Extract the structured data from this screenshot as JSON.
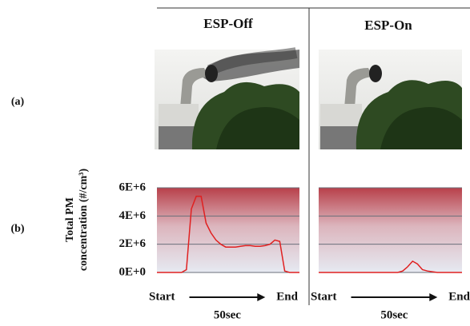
{
  "columns": [
    "ESP-Off",
    "ESP-On"
  ],
  "rows": [
    "(a)",
    "(b)"
  ],
  "chart_data": [
    {
      "type": "line",
      "color": "#e02020",
      "ylabel": [
        "Total PM",
        "concentration (#/cm³)"
      ],
      "x_start": "Start",
      "x_end": "End",
      "x_duration": "50sec",
      "ylim": [
        0,
        6000000
      ],
      "yticks": [
        {
          "value": 0,
          "label": "0E+0"
        },
        {
          "value": 2000000,
          "label": "2E+6"
        },
        {
          "value": 4000000,
          "label": "4E+6"
        },
        {
          "value": 6000000,
          "label": "6E+6"
        }
      ],
      "show_ytick_labels": true,
      "grid": true,
      "values": [
        0,
        0,
        0,
        0,
        0,
        0,
        200000,
        4500000,
        5400000,
        5400000,
        3500000,
        2800000,
        2300000,
        2000000,
        1800000,
        1800000,
        1800000,
        1850000,
        1900000,
        1900000,
        1850000,
        1850000,
        1900000,
        2000000,
        2300000,
        2200000,
        100000,
        0,
        0,
        0
      ]
    },
    {
      "type": "line",
      "color": "#e02020",
      "x_start": "Start",
      "x_end": "End",
      "x_duration": "50sec",
      "ylim": [
        0,
        6000000
      ],
      "yticks": [
        0,
        2000000,
        4000000,
        6000000
      ],
      "show_ytick_labels": false,
      "grid": true,
      "values": [
        0,
        0,
        0,
        0,
        0,
        0,
        0,
        0,
        0,
        0,
        0,
        0,
        0,
        0,
        0,
        0,
        0,
        100000,
        400000,
        800000,
        600000,
        200000,
        100000,
        50000,
        0,
        0,
        0,
        0,
        0,
        0
      ]
    }
  ]
}
